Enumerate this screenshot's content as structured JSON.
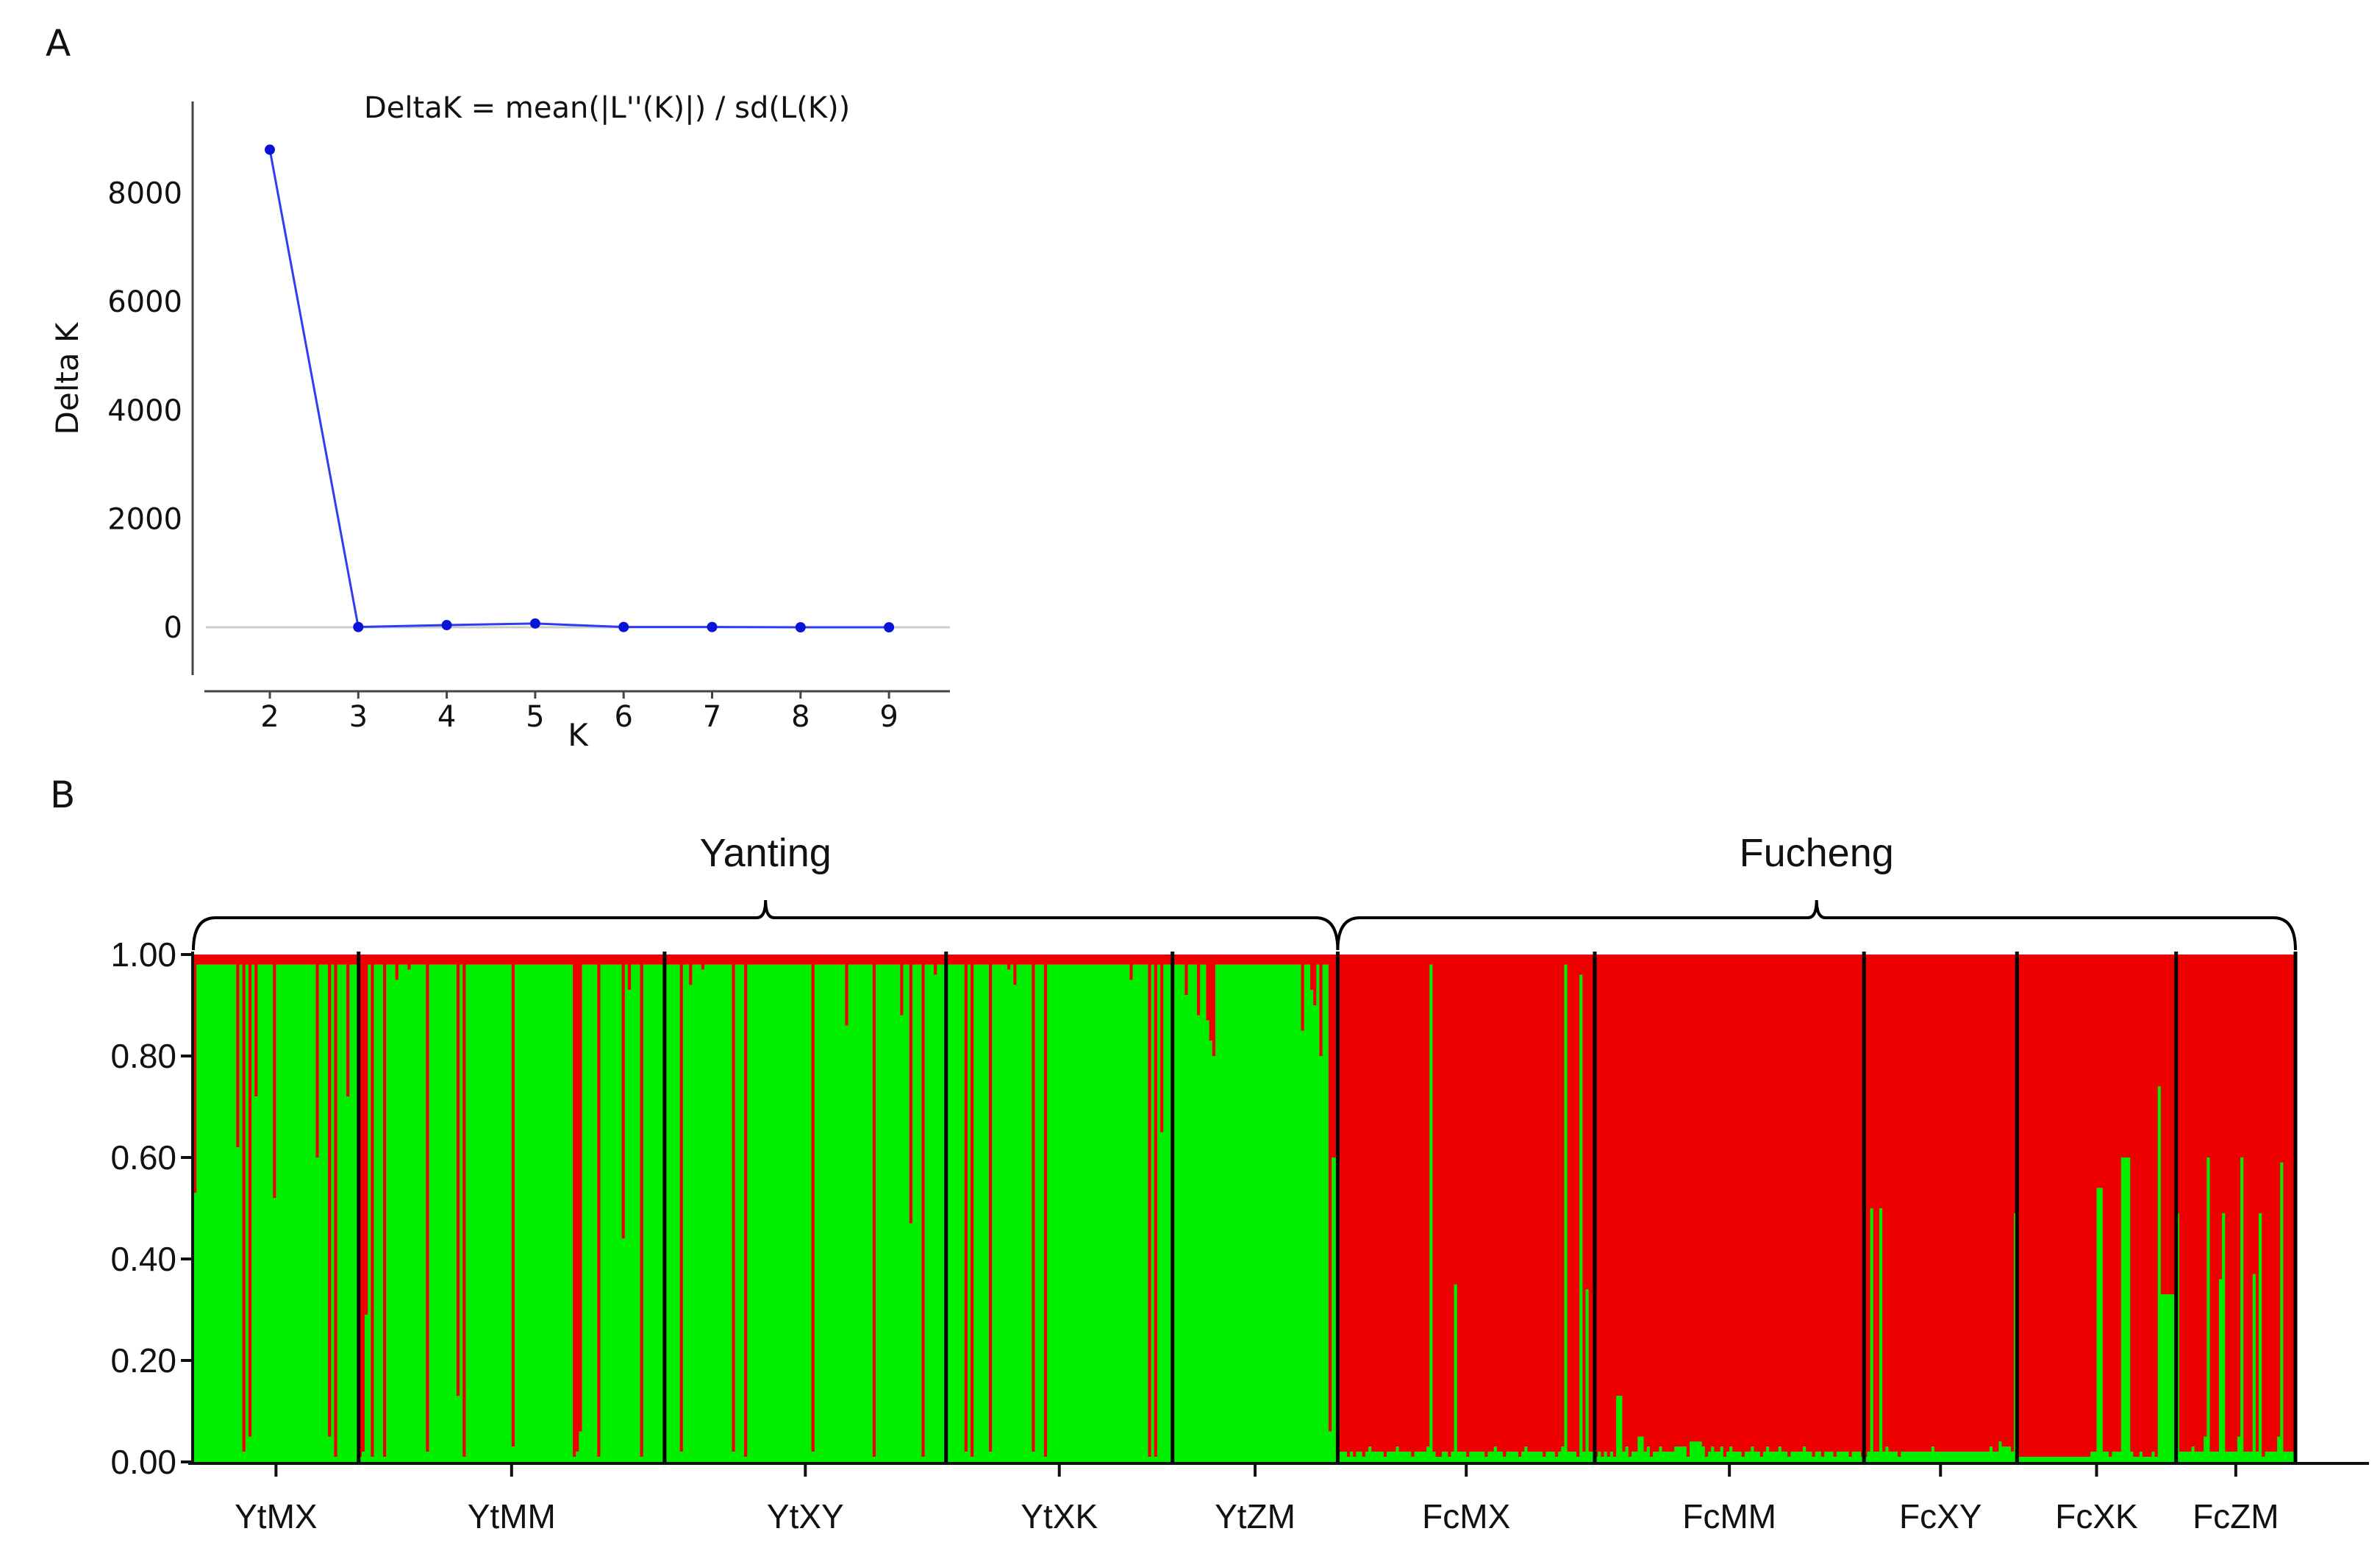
{
  "panels": {
    "a": "A",
    "b": "B"
  },
  "chart_data": [
    {
      "type": "line",
      "title": "DeltaK = mean(|L''(K)|) / sd(L(K))",
      "xlabel": "K",
      "ylabel": "Delta K",
      "x": [
        2,
        3,
        4,
        5,
        6,
        7,
        8,
        9
      ],
      "y": [
        8800,
        5,
        40,
        70,
        5,
        5,
        0,
        0
      ],
      "xlim": [
        1.25,
        9.7
      ],
      "ylim": [
        -900,
        9600
      ],
      "xticks": [
        "2",
        "3",
        "4",
        "5",
        "6",
        "7",
        "8",
        "9"
      ],
      "yticks": [
        "8000",
        "6000",
        "4000",
        "2000",
        "0"
      ],
      "ytick_values": [
        8000,
        6000,
        4000,
        2000,
        0
      ],
      "colors": {
        "line": "#2f3cf0",
        "marker": "#0a14d8",
        "zero_line": "#cccccc"
      }
    },
    {
      "type": "bar",
      "stacked": true,
      "ylim": [
        0,
        1
      ],
      "yticks": [
        "0.00",
        "0.20",
        "0.40",
        "0.60",
        "0.80",
        "1.00"
      ],
      "ytick_values": [
        0,
        0.2,
        0.4,
        0.6,
        0.8,
        1.0
      ],
      "series_colors": {
        "cluster_1": "#00ee00",
        "cluster_2": "#ee0000"
      },
      "groups": [
        {
          "name": "Yanting",
          "populations": [
            "YtMX",
            "YtMM",
            "YtXY",
            "YtXK",
            "YtZM"
          ]
        },
        {
          "name": "Fucheng",
          "populations": [
            "FcMX",
            "FcMM",
            "FcXY",
            "FcXK",
            "FcZM"
          ]
        }
      ],
      "populations": [
        {
          "name": "YtMX",
          "green": [
            0.53,
            0.98,
            0.98,
            0.98,
            0.98,
            0.98,
            0.98,
            0.98,
            0.98,
            0.98,
            0.98,
            0.98,
            0.98,
            0.98,
            0.62,
            0.98,
            0.02,
            0.98,
            0.05,
            0.98,
            0.72,
            0.98,
            0.98,
            0.98,
            0.98,
            0.98,
            0.52,
            0.98,
            0.98,
            0.98,
            0.98,
            0.98,
            0.98,
            0.98,
            0.98,
            0.98,
            0.98,
            0.98,
            0.98,
            0.98,
            0.6,
            0.98,
            0.98,
            0.98,
            0.05,
            0.98,
            0.01,
            0.98,
            0.98,
            0.98,
            0.72,
            0.98,
            0.98,
            0.98
          ]
        },
        {
          "name": "YtMM",
          "green": [
            0.01,
            0.02,
            0.29,
            0.98,
            0.01,
            0.98,
            0.98,
            0.98,
            0.01,
            0.98,
            0.98,
            0.98,
            0.95,
            0.98,
            0.98,
            0.98,
            0.97,
            0.98,
            0.98,
            0.98,
            0.98,
            0.98,
            0.02,
            0.98,
            0.98,
            0.98,
            0.98,
            0.98,
            0.98,
            0.98,
            0.98,
            0.98,
            0.13,
            0.98,
            0.01,
            0.98,
            0.98,
            0.98,
            0.98,
            0.98,
            0.98,
            0.98,
            0.98,
            0.98,
            0.98,
            0.98,
            0.98,
            0.98,
            0.98,
            0.98,
            0.03,
            0.98,
            0.98,
            0.98,
            0.98,
            0.98,
            0.98,
            0.98,
            0.98,
            0.98,
            0.98,
            0.98,
            0.98,
            0.98,
            0.98,
            0.98,
            0.98,
            0.98,
            0.98,
            0.98,
            0.01,
            0.02,
            0.06,
            0.98,
            0.98,
            0.98,
            0.98,
            0.98,
            0.01,
            0.98,
            0.98,
            0.98,
            0.98,
            0.98,
            0.98,
            0.98,
            0.44,
            0.98,
            0.93,
            0.98,
            0.98,
            0.98,
            0.01,
            0.98,
            0.98,
            0.98,
            0.98,
            0.98,
            0.98,
            0.98
          ]
        },
        {
          "name": "YtXY",
          "green": [
            0.98,
            0.98,
            0.98,
            0.98,
            0.98,
            0.02,
            0.98,
            0.98,
            0.94,
            0.98,
            0.98,
            0.98,
            0.97,
            0.98,
            0.98,
            0.98,
            0.98,
            0.98,
            0.98,
            0.98,
            0.98,
            0.98,
            0.02,
            0.98,
            0.98,
            0.98,
            0.01,
            0.98,
            0.98,
            0.98,
            0.98,
            0.98,
            0.98,
            0.98,
            0.98,
            0.98,
            0.98,
            0.98,
            0.98,
            0.98,
            0.98,
            0.98,
            0.98,
            0.98,
            0.98,
            0.98,
            0.98,
            0.98,
            0.02,
            0.98,
            0.98,
            0.98,
            0.98,
            0.98,
            0.98,
            0.98,
            0.98,
            0.98,
            0.98,
            0.86,
            0.98,
            0.98,
            0.98,
            0.98,
            0.98,
            0.98,
            0.98,
            0.98,
            0.01,
            0.98,
            0.98,
            0.98,
            0.98,
            0.98,
            0.98,
            0.98,
            0.98,
            0.88,
            0.98,
            0.98,
            0.47,
            0.98,
            0.98,
            0.98,
            0.01,
            0.98,
            0.98,
            0.98,
            0.96,
            0.98,
            0.98,
            0.98
          ]
        },
        {
          "name": "YtXK",
          "green": [
            0.98,
            0.98,
            0.98,
            0.98,
            0.98,
            0.98,
            0.02,
            0.98,
            0.01,
            0.98,
            0.98,
            0.98,
            0.98,
            0.98,
            0.02,
            0.98,
            0.98,
            0.98,
            0.98,
            0.98,
            0.97,
            0.98,
            0.94,
            0.98,
            0.98,
            0.98,
            0.98,
            0.98,
            0.02,
            0.98,
            0.98,
            0.98,
            0.01,
            0.98,
            0.98,
            0.98,
            0.98,
            0.98,
            0.98,
            0.98,
            0.98,
            0.98,
            0.98,
            0.98,
            0.98,
            0.98,
            0.98,
            0.98,
            0.98,
            0.98,
            0.98,
            0.98,
            0.98,
            0.98,
            0.98,
            0.98,
            0.98,
            0.98,
            0.98,
            0.98,
            0.95,
            0.98,
            0.98,
            0.98,
            0.98,
            0.98,
            0.01,
            0.98,
            0.01,
            0.98,
            0.65,
            0.98,
            0.98,
            0.98
          ]
        },
        {
          "name": "YtZM",
          "green": [
            0.98,
            0.98,
            0.98,
            0.98,
            0.92,
            0.98,
            0.98,
            0.98,
            0.88,
            0.98,
            0.98,
            0.87,
            0.83,
            0.8,
            0.98,
            0.98,
            0.98,
            0.98,
            0.98,
            0.98,
            0.98,
            0.98,
            0.98,
            0.98,
            0.98,
            0.98,
            0.98,
            0.98,
            0.98,
            0.98,
            0.98,
            0.98,
            0.98,
            0.98,
            0.98,
            0.98,
            0.98,
            0.98,
            0.98,
            0.98,
            0.98,
            0.98,
            0.85,
            0.98,
            0.98,
            0.93,
            0.9,
            0.98,
            0.8,
            0.98,
            0.98,
            0.06,
            0.6,
            0.6
          ]
        },
        {
          "name": "FcMX",
          "green": [
            0.02,
            0.02,
            0.02,
            0.01,
            0.02,
            0.01,
            0.02,
            0.02,
            0.01,
            0.02,
            0.03,
            0.02,
            0.02,
            0.02,
            0.02,
            0.01,
            0.02,
            0.02,
            0.02,
            0.03,
            0.02,
            0.02,
            0.02,
            0.02,
            0.01,
            0.02,
            0.02,
            0.02,
            0.02,
            0.03,
            0.98,
            0.02,
            0.01,
            0.01,
            0.02,
            0.02,
            0.01,
            0.02,
            0.35,
            0.02,
            0.02,
            0.02,
            0.01,
            0.02,
            0.02,
            0.02,
            0.02,
            0.02,
            0.01,
            0.02,
            0.02,
            0.03,
            0.02,
            0.02,
            0.01,
            0.02,
            0.02,
            0.02,
            0.02,
            0.01,
            0.02,
            0.03,
            0.02,
            0.02,
            0.02,
            0.02,
            0.02,
            0.01,
            0.02,
            0.02,
            0.02,
            0.01,
            0.02,
            0.03,
            0.98,
            0.02,
            0.02,
            0.02,
            0.01,
            0.96,
            0.02,
            0.34,
            0.02,
            0.02
          ]
        },
        {
          "name": "FcMM",
          "green": [
            0.01,
            0.02,
            0.01,
            0.02,
            0.01,
            0.02,
            0.01,
            0.13,
            0.13,
            0.02,
            0.03,
            0.01,
            0.02,
            0.02,
            0.05,
            0.05,
            0.02,
            0.03,
            0.01,
            0.02,
            0.02,
            0.03,
            0.02,
            0.02,
            0.02,
            0.02,
            0.03,
            0.03,
            0.03,
            0.03,
            0.01,
            0.04,
            0.04,
            0.04,
            0.04,
            0.03,
            0.01,
            0.02,
            0.03,
            0.02,
            0.02,
            0.03,
            0.01,
            0.02,
            0.03,
            0.02,
            0.02,
            0.02,
            0.01,
            0.02,
            0.02,
            0.03,
            0.02,
            0.02,
            0.01,
            0.02,
            0.03,
            0.02,
            0.02,
            0.02,
            0.03,
            0.02,
            0.02,
            0.01,
            0.02,
            0.02,
            0.02,
            0.02,
            0.03,
            0.02,
            0.02,
            0.01,
            0.02,
            0.02,
            0.01,
            0.02,
            0.02,
            0.02,
            0.01,
            0.02,
            0.02,
            0.02,
            0.02,
            0.01,
            0.02,
            0.02,
            0.02,
            0.01
          ]
        },
        {
          "name": "FcXY",
          "green": [
            0.01,
            0.02,
            0.5,
            0.02,
            0.02,
            0.5,
            0.02,
            0.03,
            0.02,
            0.02,
            0.02,
            0.01,
            0.02,
            0.02,
            0.02,
            0.02,
            0.02,
            0.02,
            0.02,
            0.02,
            0.02,
            0.02,
            0.03,
            0.02,
            0.02,
            0.02,
            0.02,
            0.02,
            0.02,
            0.02,
            0.02,
            0.02,
            0.02,
            0.02,
            0.02,
            0.02,
            0.02,
            0.02,
            0.02,
            0.02,
            0.02,
            0.03,
            0.02,
            0.02,
            0.04,
            0.03,
            0.03,
            0.03,
            0.02,
            0.49
          ]
        },
        {
          "name": "FcXK",
          "green": [
            0.01,
            0.01,
            0.01,
            0.01,
            0.01,
            0.01,
            0.01,
            0.01,
            0.01,
            0.01,
            0.01,
            0.01,
            0.01,
            0.01,
            0.01,
            0.01,
            0.01,
            0.01,
            0.01,
            0.01,
            0.01,
            0.01,
            0.01,
            0.01,
            0.02,
            0.02,
            0.54,
            0.54,
            0.02,
            0.02,
            0.01,
            0.02,
            0.02,
            0.02,
            0.6,
            0.6,
            0.6,
            0.02,
            0.01,
            0.01,
            0.02,
            0.01,
            0.01,
            0.01,
            0.02,
            0.01,
            0.74,
            0.33,
            0.33,
            0.33,
            0.33,
            0.33
          ]
        },
        {
          "name": "FcZM",
          "green": [
            0.49,
            0.02,
            0.02,
            0.02,
            0.02,
            0.03,
            0.02,
            0.02,
            0.02,
            0.05,
            0.6,
            0.02,
            0.02,
            0.02,
            0.36,
            0.49,
            0.02,
            0.02,
            0.02,
            0.02,
            0.05,
            0.6,
            0.02,
            0.02,
            0.02,
            0.37,
            0.02,
            0.49,
            0.01,
            0.02,
            0.02,
            0.02,
            0.02,
            0.05,
            0.59,
            0.02,
            0.02,
            0.02,
            0.02
          ]
        }
      ]
    }
  ]
}
